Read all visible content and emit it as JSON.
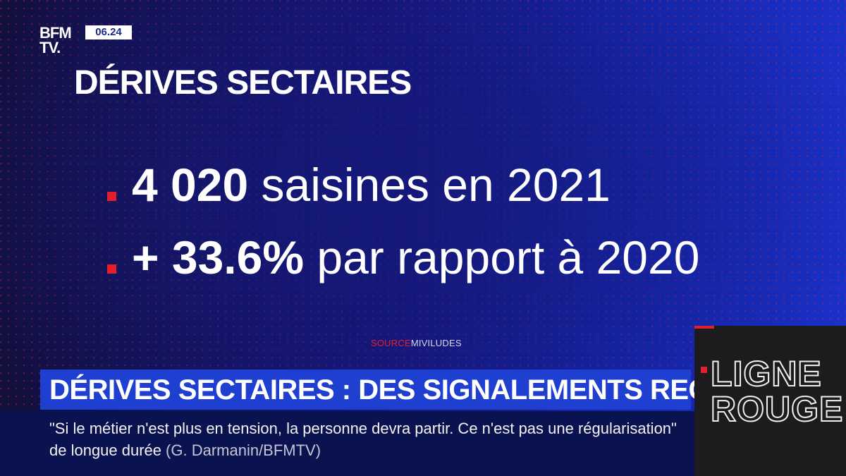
{
  "channel": {
    "logo_line1": "BFM",
    "logo_line2": "TV.",
    "time": "06.24"
  },
  "graphic": {
    "title": "DÉRIVES SECTAIRES",
    "bullets": [
      {
        "number": "4 020",
        "text": " saisines en 2021"
      },
      {
        "number": "+ 33.6%",
        "text": " par rapport à 2020"
      }
    ],
    "source_label": "SOURCE",
    "source_value": "MIVILUDES"
  },
  "lower_third": {
    "headline": "DÉRIVES SECTAIRES : DES SIGNALEMENTS RECORD",
    "quote": "\"Si le métier n'est plus en tension, la personne devra partir. Ce n'est pas une régularisation\" de longue durée",
    "attribution": "(G. Darmanin/BFMTV)"
  },
  "program": {
    "line1": "LIGNE",
    "line2": "ROUGE"
  },
  "colors": {
    "accent_red": "#e3202a",
    "band_blue": "#1f3fd0",
    "background_blue": "#1424a8"
  }
}
